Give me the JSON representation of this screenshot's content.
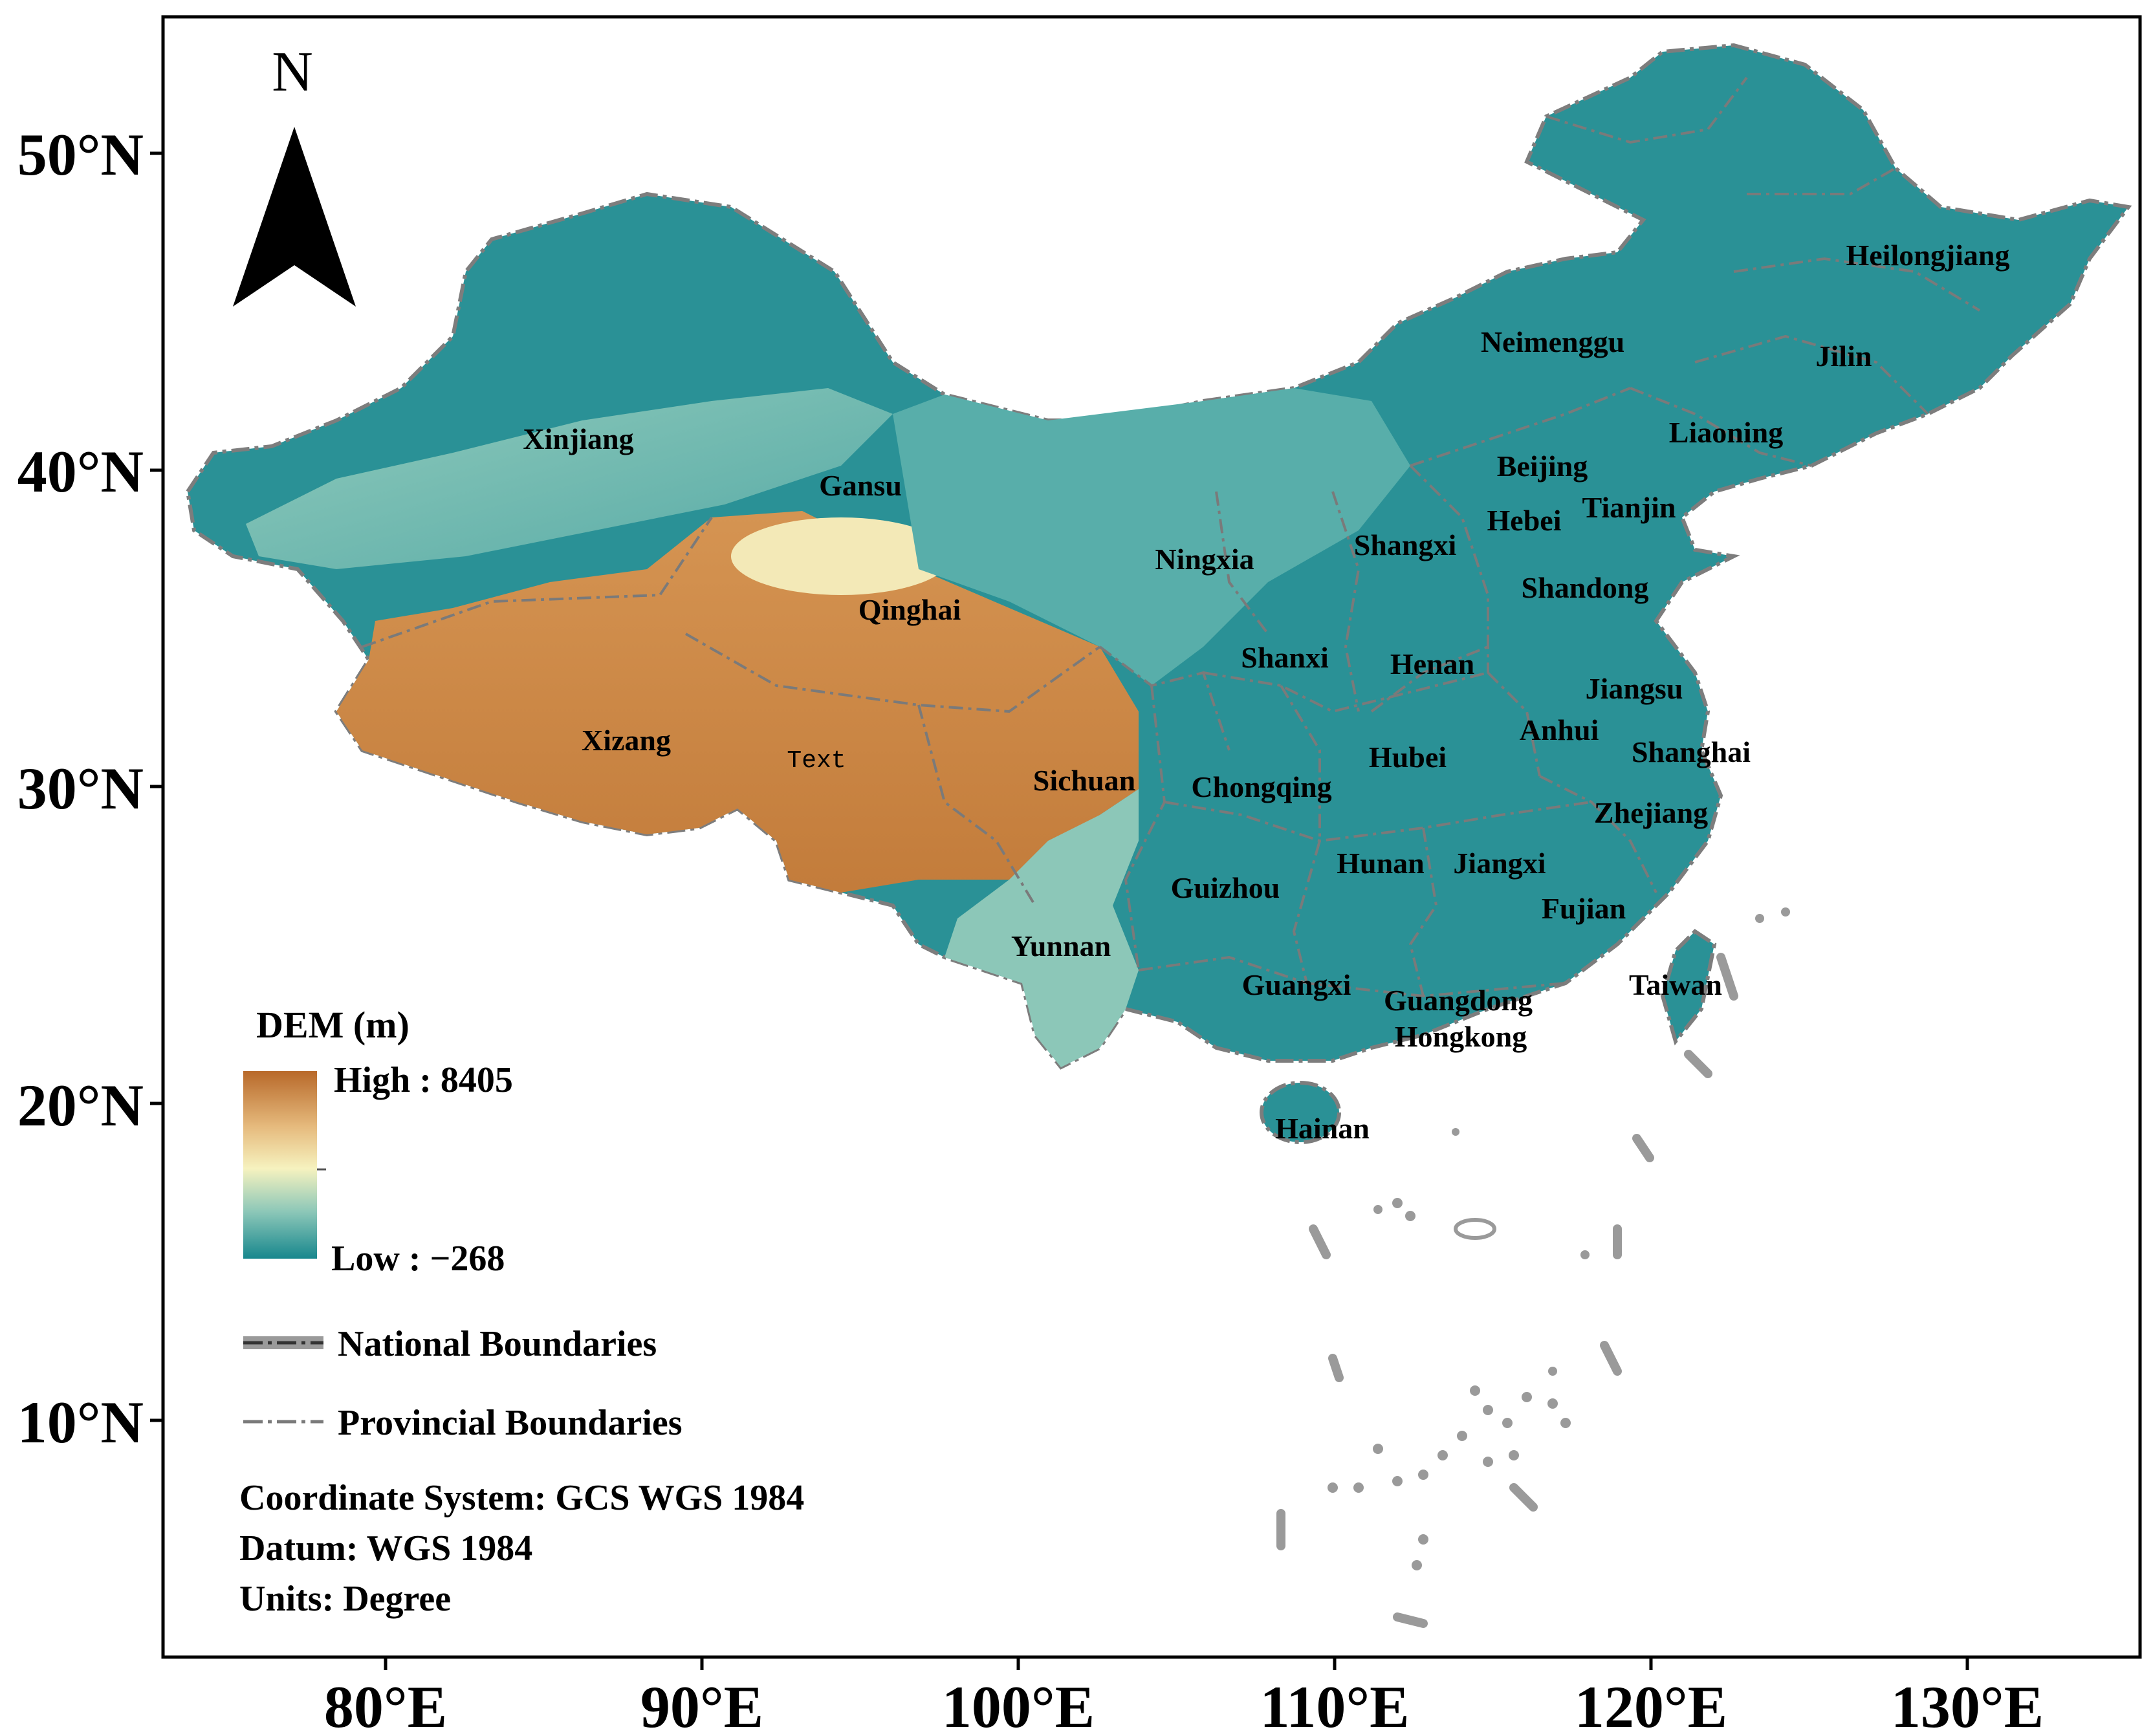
{
  "axes": {
    "lat_labels": [
      "50°N",
      "40°N",
      "30°N",
      "20°N",
      "10°N"
    ],
    "lon_labels": [
      "80°E",
      "90°E",
      "100°E",
      "110°E",
      "120°E",
      "130°E"
    ]
  },
  "north_arrow": {
    "label": "N",
    "icon": "north-arrow-icon"
  },
  "provinces": [
    "Xinjiang",
    "Gansu",
    "Qinghai",
    "Xizang",
    "Ningxia",
    "Shangxi",
    "Shanxi",
    "Sichuan",
    "Yunnan",
    "Chongqing",
    "Guizhou",
    "Guangxi",
    "Hubei",
    "Henan",
    "Hunan",
    "Jiangxi",
    "Anhui",
    "Jiangsu",
    "Shanghai",
    "Zhejiang",
    "Fujian",
    "Guangdong",
    "Hongkong",
    "Hainan",
    "Taiwan",
    "Shandong",
    "Hebei",
    "Beijing",
    "Tianjin",
    "Liaoning",
    "Jilin",
    "Heilongjiang",
    "Neimenggu"
  ],
  "placeholder_text": "Text",
  "legend": {
    "title": "DEM (m)",
    "high": "High : 8405",
    "low": "Low : −268",
    "national": "National Boundaries",
    "provincial": "Provincial Boundaries",
    "colors": {
      "high": "#b8692a",
      "mid_high": "#e6bb7e",
      "mid": "#f6f2bf",
      "mid_low": "#8cc7b8",
      "low": "#17878d"
    }
  },
  "info": {
    "coordinate_system": "Coordinate System: GCS WGS 1984",
    "datum": "Datum: WGS 1984",
    "units": "Units: Degree"
  }
}
